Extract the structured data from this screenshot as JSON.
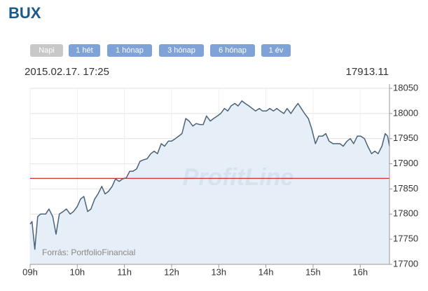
{
  "header": {
    "title": "BUX",
    "buttons": [
      "Napi",
      "1 hét",
      "1 hónap",
      "3 hónap",
      "6 hónap",
      "1 év"
    ],
    "date": "2015.02.17. 17:25",
    "last": "17913.11"
  },
  "chart_data": {
    "type": "line",
    "watermark": "ProfitLine",
    "source": "Forrás: PortfolioFinancial",
    "x": [
      9.0,
      9.04,
      9.1,
      9.16,
      9.22,
      9.33,
      9.4,
      9.48,
      9.55,
      9.62,
      9.7,
      9.77,
      9.85,
      9.92,
      10.0,
      10.07,
      10.14,
      10.22,
      10.29,
      10.37,
      10.44,
      10.52,
      10.59,
      10.66,
      10.74,
      10.81,
      10.89,
      10.96,
      11.04,
      11.11,
      11.18,
      11.26,
      11.33,
      11.41,
      11.48,
      11.56,
      11.63,
      11.7,
      11.78,
      11.85,
      11.93,
      12.0,
      12.08,
      12.15,
      12.22,
      12.3,
      12.37,
      12.45,
      12.52,
      12.6,
      12.67,
      12.74,
      12.82,
      12.89,
      12.97,
      13.04,
      13.12,
      13.19,
      13.26,
      13.34,
      13.41,
      13.49,
      13.56,
      13.64,
      13.71,
      13.78,
      13.86,
      13.93,
      14.01,
      14.08,
      14.16,
      14.23,
      14.3,
      14.38,
      14.45,
      14.53,
      14.6,
      14.68,
      14.75,
      14.82,
      14.9,
      14.97,
      15.05,
      15.12,
      15.2,
      15.27,
      15.34,
      15.42,
      15.49,
      15.57,
      15.64,
      15.72,
      15.79,
      15.86,
      15.94,
      16.01,
      16.09,
      16.16,
      16.24,
      16.31,
      16.38,
      16.46,
      16.53,
      16.58,
      16.62
    ],
    "series": [
      {
        "name": "BUX",
        "color": "#4a6378",
        "fill": "#e6eef7",
        "values": [
          17780,
          17785,
          17730,
          17795,
          17800,
          17800,
          17810,
          17795,
          17760,
          17800,
          17805,
          17810,
          17800,
          17805,
          17815,
          17830,
          17835,
          17805,
          17810,
          17830,
          17840,
          17855,
          17840,
          17845,
          17855,
          17870,
          17865,
          17870,
          17872,
          17885,
          17885,
          17890,
          17905,
          17908,
          17910,
          17920,
          17925,
          17920,
          17940,
          17935,
          17945,
          17945,
          17950,
          17955,
          17960,
          17990,
          17985,
          17975,
          17980,
          17978,
          17978,
          17995,
          17985,
          17990,
          17995,
          18000,
          18010,
          18005,
          18015,
          18020,
          18015,
          18025,
          18020,
          18015,
          18010,
          18005,
          18010,
          18005,
          18005,
          18010,
          18005,
          18010,
          18005,
          18000,
          18010,
          18000,
          18010,
          18020,
          18010,
          18000,
          17990,
          17970,
          17940,
          17955,
          17955,
          17960,
          17945,
          17940,
          17940,
          17940,
          17935,
          17945,
          17950,
          17940,
          17955,
          17955,
          17950,
          17935,
          17920,
          17925,
          17920,
          17935,
          17960,
          17955,
          17935
        ]
      }
    ],
    "reference_line": {
      "value": 17871,
      "color": "#cc3333"
    },
    "xlim": [
      9,
      16.62
    ],
    "xticks": [
      {
        "value": 9,
        "label": "09h"
      },
      {
        "value": 10,
        "label": "10h"
      },
      {
        "value": 11,
        "label": "11h"
      },
      {
        "value": 12,
        "label": "12h"
      },
      {
        "value": 13,
        "label": "13h"
      },
      {
        "value": 14,
        "label": "14h"
      },
      {
        "value": 15,
        "label": "15h"
      },
      {
        "value": 16,
        "label": "16h"
      }
    ],
    "ylim": [
      17700,
      18050
    ],
    "yticks": [
      17700,
      17750,
      17800,
      17850,
      17900,
      17950,
      18000,
      18050
    ],
    "grid": true
  }
}
